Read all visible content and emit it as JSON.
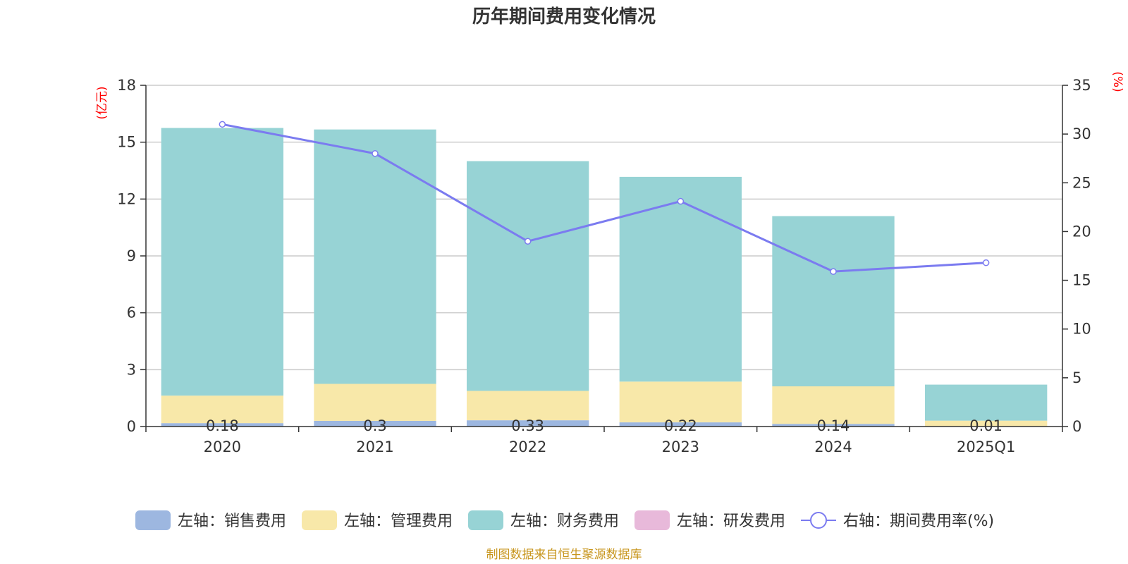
{
  "chart_data": {
    "type": "bar",
    "title": "历年期间费用变化情况",
    "categories": [
      "2020",
      "2021",
      "2022",
      "2023",
      "2024",
      "2025Q1"
    ],
    "left_axis": {
      "unit": "(亿元)",
      "ylim": [
        0,
        18
      ],
      "ticks": [
        0,
        3,
        6,
        9,
        12,
        15,
        18
      ]
    },
    "right_axis": {
      "unit": "(%)",
      "ylim": [
        0,
        35
      ],
      "ticks": [
        0,
        5,
        10,
        15,
        20,
        25,
        30,
        35
      ]
    },
    "series": [
      {
        "name": "左轴：销售费用",
        "type": "bar",
        "axis": "left",
        "color": "#9db7e0",
        "values": [
          0.18,
          0.3,
          0.33,
          0.22,
          0.14,
          0.01
        ],
        "labels": [
          "0.18",
          "0.3",
          "0.33",
          "0.22",
          "0.14",
          "0.01"
        ]
      },
      {
        "name": "左轴：管理费用",
        "type": "bar",
        "axis": "left",
        "color": "#f8e8a9",
        "values": [
          1.45,
          1.95,
          1.55,
          2.15,
          1.98,
          0.3
        ]
      },
      {
        "name": "左轴：财务费用",
        "type": "bar",
        "axis": "left",
        "color": "#97d3d5",
        "values": [
          14.12,
          13.42,
          12.12,
          10.8,
          8.98,
          1.9
        ]
      },
      {
        "name": "左轴：研发费用",
        "type": "bar",
        "axis": "left",
        "color": "#e8b9da",
        "values": [
          0,
          0,
          0,
          0,
          0,
          0
        ]
      },
      {
        "name": "右轴：期间费用率(%)",
        "type": "line",
        "axis": "right",
        "color": "#7b7bf0",
        "values": [
          31.0,
          28.0,
          19.0,
          23.1,
          15.9,
          16.8
        ]
      }
    ],
    "grid": true,
    "legend_position": "bottom"
  },
  "source_note": "制图数据来自恒生聚源数据库"
}
